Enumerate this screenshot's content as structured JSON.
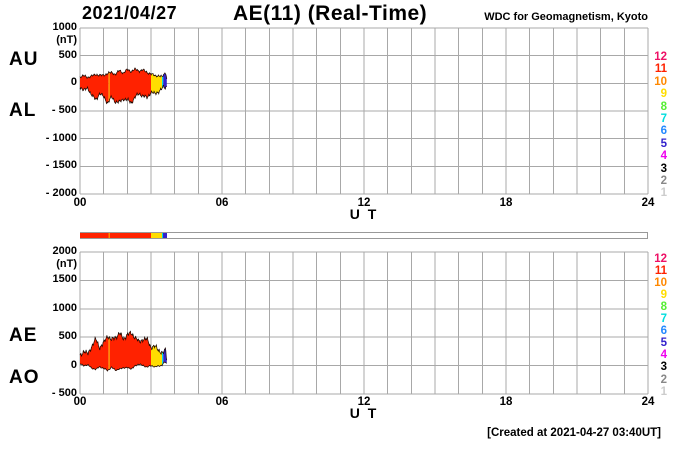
{
  "title": {
    "date": "2021/04/27",
    "main": "AE(11) (Real-Time)",
    "source": "WDC for Geomagnetism, Kyoto"
  },
  "footer": {
    "created": "[Created at 2021-04-27 03:40UT]"
  },
  "unit": "(nT)",
  "panel_labels": {
    "top": [
      "AU",
      "AL"
    ],
    "bottom": [
      "AE",
      "AO"
    ]
  },
  "x_axis": {
    "label": "U T",
    "tick_hours": [
      0,
      6,
      12,
      18,
      24
    ],
    "tick_labels": [
      "00",
      "06",
      "12",
      "18",
      "24"
    ]
  },
  "y_axes": {
    "top": {
      "tick_values": [
        1000,
        500,
        0,
        -500,
        -1000,
        -1500,
        -2000
      ],
      "tick_labels": [
        "1000",
        "500",
        "0",
        "- 500",
        "- 1000",
        "- 1500",
        "- 2000"
      ]
    },
    "bottom": {
      "tick_values": [
        2000,
        1500,
        1000,
        500,
        0,
        -500
      ],
      "tick_labels": [
        "2000",
        "1500",
        "1000",
        "500",
        "0",
        "- 500"
      ]
    }
  },
  "station_legend": [
    {
      "count": 12,
      "color": "#ee1166"
    },
    {
      "count": 11,
      "color": "#ff2200"
    },
    {
      "count": 10,
      "color": "#ff8800"
    },
    {
      "count": 9,
      "color": "#ffdd00"
    },
    {
      "count": 8,
      "color": "#55ee33"
    },
    {
      "count": 7,
      "color": "#00dddd"
    },
    {
      "count": 6,
      "color": "#2288ff"
    },
    {
      "count": 5,
      "color": "#3322cc"
    },
    {
      "count": 4,
      "color": "#ee00ee"
    },
    {
      "count": 3,
      "color": "#000000"
    },
    {
      "count": 2,
      "color": "#888888"
    },
    {
      "count": 1,
      "color": "#cccccc"
    }
  ],
  "chart_data": {
    "type": "area",
    "title": "AE(11) (Real-Time) 2021/04/27",
    "xlabel": "U T",
    "ylabel": "(nT)",
    "x_range_hours": [
      0,
      24
    ],
    "grid": true,
    "data_end_ut": "03:40",
    "t_minutes": [
      0,
      10,
      20,
      30,
      40,
      50,
      60,
      70,
      80,
      90,
      100,
      110,
      120,
      130,
      140,
      150,
      160,
      170,
      180,
      190,
      200,
      208,
      212,
      217,
      220
    ],
    "series": [
      {
        "name": "AU",
        "values": [
          115,
          135,
          110,
          130,
          165,
          140,
          150,
          175,
          200,
          160,
          235,
          185,
          250,
          215,
          255,
          225,
          240,
          200,
          165,
          145,
          130,
          120,
          160,
          205,
          80
        ]
      },
      {
        "name": "AL",
        "values": [
          -60,
          -125,
          -90,
          -215,
          -300,
          -180,
          -245,
          -355,
          -250,
          -335,
          -340,
          -280,
          -300,
          -350,
          -245,
          -185,
          -230,
          -260,
          -160,
          -190,
          -145,
          -100,
          -60,
          -90,
          -30
        ]
      },
      {
        "name": "AE",
        "values": [
          175,
          260,
          200,
          345,
          465,
          320,
          395,
          530,
          450,
          495,
          575,
          465,
          550,
          565,
          500,
          410,
          470,
          460,
          325,
          335,
          275,
          220,
          220,
          295,
          110
        ]
      },
      {
        "name": "AO",
        "values": [
          28,
          5,
          10,
          -43,
          -68,
          -20,
          -48,
          -90,
          -25,
          -88,
          -53,
          -48,
          -25,
          -68,
          5,
          20,
          5,
          -30,
          3,
          -23,
          -8,
          10,
          50,
          58,
          25
        ]
      }
    ],
    "panels": [
      {
        "name": "AU-AL",
        "series": [
          "AU",
          "AL"
        ],
        "ylim": [
          -2000,
          1000
        ]
      },
      {
        "name": "AE-AO",
        "series": [
          "AE",
          "AO"
        ],
        "ylim": [
          -500,
          2000
        ]
      }
    ],
    "station_color_segments": [
      {
        "start_min": 0,
        "end_min": 72,
        "stations": 11,
        "color": "#ff2200"
      },
      {
        "start_min": 72,
        "end_min": 76,
        "stations": 10,
        "color": "#ff8800"
      },
      {
        "start_min": 76,
        "end_min": 180,
        "stations": 11,
        "color": "#ff2200"
      },
      {
        "start_min": 180,
        "end_min": 208,
        "stations": 9,
        "color": "#ffdd00"
      },
      {
        "start_min": 208,
        "end_min": 211,
        "stations": 7,
        "color": "#00dddd"
      },
      {
        "start_min": 211,
        "end_min": 220,
        "stations": 5,
        "color": "#3322cc"
      }
    ]
  }
}
